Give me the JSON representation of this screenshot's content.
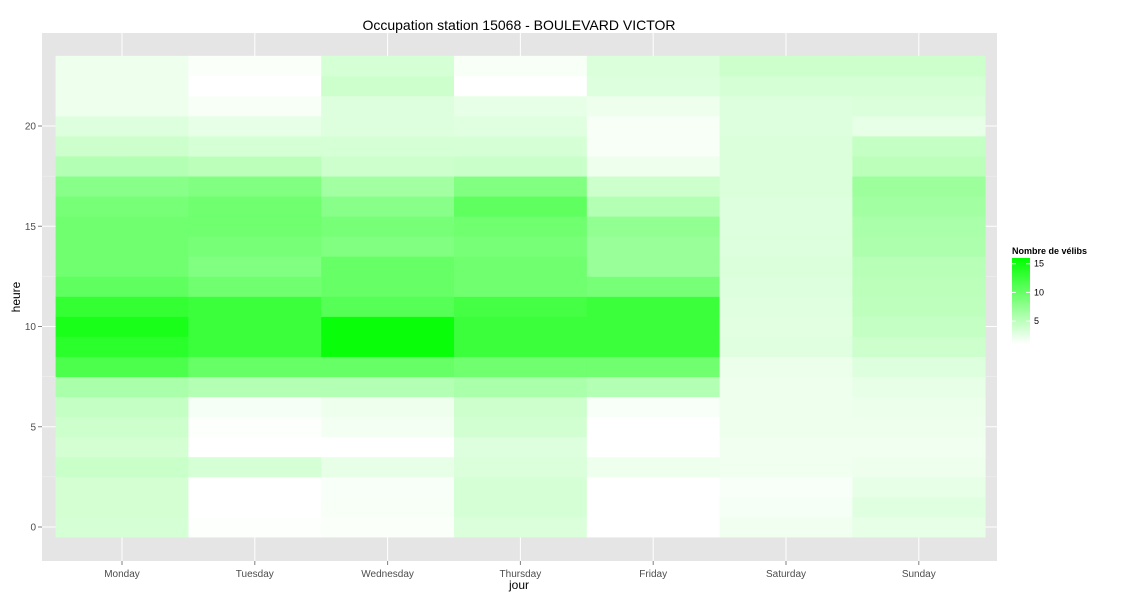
{
  "chart_data": {
    "type": "heatmap",
    "title": "Occupation station 15068 - BOULEVARD VICTOR",
    "xlabel": "jour",
    "ylabel": "heure",
    "x_categories": [
      "Monday",
      "Tuesday",
      "Wednesday",
      "Thursday",
      "Friday",
      "Saturday",
      "Sunday"
    ],
    "hours": [
      0,
      1,
      2,
      3,
      4,
      5,
      6,
      7,
      8,
      9,
      10,
      11,
      12,
      13,
      14,
      15,
      16,
      17,
      18,
      19,
      20,
      21,
      22,
      23
    ],
    "y_ticks": [
      0,
      5,
      10,
      15,
      20
    ],
    "y_tick_labels": [
      "0",
      "5",
      "10",
      "15",
      "20"
    ],
    "value_range": [
      1,
      16
    ],
    "values": [
      [
        3.5,
        1.2,
        1.3,
        3.2,
        0.5,
        1.8,
        2.5
      ],
      [
        3.6,
        1.0,
        1.5,
        3.5,
        0.2,
        1.6,
        2.8
      ],
      [
        3.6,
        1.0,
        1.4,
        3.5,
        0.1,
        1.4,
        2.4
      ],
      [
        4.2,
        3.5,
        2.5,
        3.2,
        2.0,
        1.8,
        2.0
      ],
      [
        3.6,
        0.6,
        0.4,
        3.0,
        0.7,
        1.9,
        1.8
      ],
      [
        4.0,
        1.2,
        1.7,
        3.7,
        1.0,
        2.0,
        2.0
      ],
      [
        4.5,
        1.6,
        2.0,
        4.0,
        1.4,
        2.0,
        2.2
      ],
      [
        6.0,
        5.5,
        5.5,
        6.0,
        5.5,
        2.0,
        2.5
      ],
      [
        11.5,
        10.0,
        10.0,
        9.5,
        9.5,
        2.2,
        3.0
      ],
      [
        13.5,
        12.5,
        15.5,
        12.5,
        12.5,
        2.8,
        4.0
      ],
      [
        14.5,
        12.5,
        15.5,
        12.5,
        12.5,
        2.7,
        4.5
      ],
      [
        13.0,
        12.5,
        11.0,
        12.0,
        12.5,
        2.8,
        4.8
      ],
      [
        10.5,
        9.5,
        10.0,
        9.5,
        9.0,
        3.0,
        5.0
      ],
      [
        9.5,
        8.5,
        10.0,
        9.5,
        7.0,
        3.2,
        5.2
      ],
      [
        9.5,
        9.0,
        8.5,
        9.0,
        7.0,
        3.0,
        5.8
      ],
      [
        9.5,
        9.5,
        9.0,
        9.5,
        7.5,
        3.0,
        6.0
      ],
      [
        9.0,
        9.5,
        8.0,
        10.5,
        5.5,
        3.0,
        6.5
      ],
      [
        8.0,
        8.5,
        6.5,
        8.5,
        4.0,
        3.2,
        6.8
      ],
      [
        5.5,
        5.0,
        4.0,
        4.2,
        2.0,
        3.2,
        5.0
      ],
      [
        4.0,
        3.5,
        3.5,
        3.5,
        1.5,
        3.2,
        4.5
      ],
      [
        3.0,
        2.5,
        3.0,
        2.8,
        1.5,
        3.0,
        2.5
      ],
      [
        2.0,
        1.5,
        3.0,
        2.5,
        2.0,
        3.0,
        3.2
      ],
      [
        2.0,
        1.0,
        4.0,
        1.0,
        3.0,
        3.5,
        3.5
      ],
      [
        2.0,
        1.3,
        3.5,
        1.5,
        3.2,
        4.0,
        4.0
      ]
    ],
    "colors": {
      "low": "#ffffff",
      "high": "#00ff00",
      "panel_background": "#e5e5e5",
      "grid_line": "#ffffff"
    },
    "legend": {
      "title": "Nombre de vélibs",
      "position": "right",
      "breaks": [
        5,
        10,
        15
      ],
      "labels": [
        "5",
        "10",
        "15"
      ]
    },
    "grid": true
  }
}
